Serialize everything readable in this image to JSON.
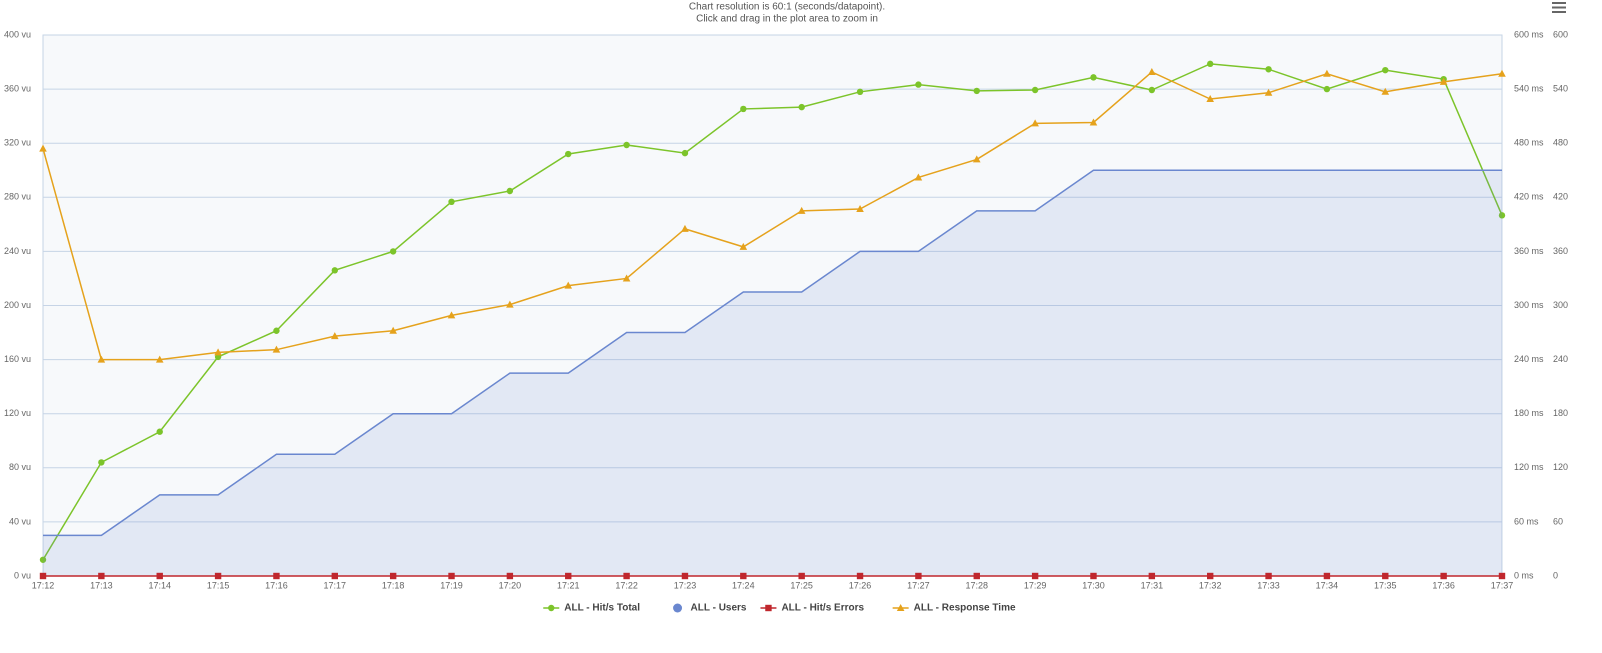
{
  "chart_data": {
    "type": "line",
    "title": "Chart resolution is 60:1 (seconds/datapoint).",
    "subtitle": "Click and drag in the plot area to zoom in",
    "categories": [
      "17:12",
      "17:13",
      "17:14",
      "17:15",
      "17:16",
      "17:17",
      "17:18",
      "17:19",
      "17:20",
      "17:21",
      "17:22",
      "17:23",
      "17:24",
      "17:25",
      "17:26",
      "17:27",
      "17:28",
      "17:29",
      "17:30",
      "17:31",
      "17:32",
      "17:33",
      "17:34",
      "17:35",
      "17:36",
      "17:37"
    ],
    "ylim": [
      0,
      400
    ],
    "yticks": [
      {
        "value": 0,
        "label": "0 vu"
      },
      {
        "value": 40,
        "label": "40 vu"
      },
      {
        "value": 80,
        "label": "80 vu"
      },
      {
        "value": 120,
        "label": "120 vu"
      },
      {
        "value": 160,
        "label": "160 vu"
      },
      {
        "value": 200,
        "label": "200 vu"
      },
      {
        "value": 240,
        "label": "240 vu"
      },
      {
        "value": 280,
        "label": "280 vu"
      },
      {
        "value": 320,
        "label": "320 vu"
      },
      {
        "value": 360,
        "label": "360 vu"
      },
      {
        "value": 400,
        "label": "400 vu"
      }
    ],
    "y2lim": [
      0,
      600
    ],
    "y2ticks": [
      {
        "value": 0,
        "label": "0 ms"
      },
      {
        "value": 60,
        "label": "60 ms"
      },
      {
        "value": 120,
        "label": "120 ms"
      },
      {
        "value": 180,
        "label": "180 ms"
      },
      {
        "value": 240,
        "label": "240 ms"
      },
      {
        "value": 300,
        "label": "300 ms"
      },
      {
        "value": 360,
        "label": "360 ms"
      },
      {
        "value": 420,
        "label": "420 ms"
      },
      {
        "value": 480,
        "label": "480 ms"
      },
      {
        "value": 540,
        "label": "540 ms"
      },
      {
        "value": 600,
        "label": "600 ms"
      }
    ],
    "y3lim": [
      0,
      600
    ],
    "y3ticks": [
      0,
      60,
      120,
      180,
      240,
      300,
      360,
      420,
      480,
      540,
      600
    ],
    "grid": true,
    "legend": "bottom",
    "series": [
      {
        "name": "ALL - Hit/s Total",
        "color": "#7cc42a",
        "axis": "y3",
        "marker": "circle",
        "values": [
          18,
          126,
          160,
          243,
          272,
          339,
          360,
          415,
          427,
          468,
          478,
          469,
          518,
          520,
          537,
          545,
          538,
          539,
          553,
          539,
          568,
          562,
          540,
          561,
          551,
          400
        ]
      },
      {
        "name": "ALL - Users",
        "color": "#6a87cf",
        "axis": "y",
        "marker": "area",
        "values": [
          30,
          30,
          60,
          60,
          90,
          90,
          120,
          120,
          150,
          150,
          180,
          180,
          210,
          210,
          240,
          240,
          270,
          270,
          300,
          300,
          300,
          300,
          300,
          300,
          300,
          300
        ]
      },
      {
        "name": "ALL - Hit/s Errors",
        "color": "#c0272d",
        "axis": "y3",
        "marker": "square",
        "values": [
          0,
          0,
          0,
          0,
          0,
          0,
          0,
          0,
          0,
          0,
          0,
          0,
          0,
          0,
          0,
          0,
          0,
          0,
          0,
          0,
          0,
          0,
          0,
          0,
          0,
          0
        ]
      },
      {
        "name": "ALL - Response Time",
        "color": "#e5a21c",
        "axis": "y2",
        "marker": "triangle",
        "values": [
          474,
          240,
          240,
          248,
          251,
          266,
          272,
          289,
          301,
          322,
          330,
          385,
          365,
          405,
          407,
          442,
          462,
          502,
          503,
          559,
          529,
          536,
          557,
          537,
          548,
          557
        ]
      }
    ]
  }
}
